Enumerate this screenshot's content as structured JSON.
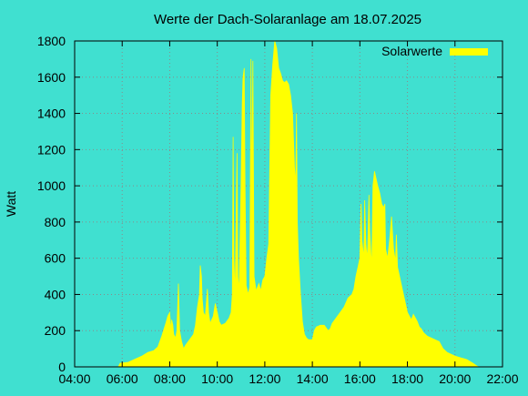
{
  "chart_data": {
    "type": "area",
    "title": "Werte der Dach-Solaranlage am 18.07.2025",
    "xlabel": "",
    "ylabel": "Watt",
    "xlim": [
      "04:00",
      "22:00"
    ],
    "ylim": [
      0,
      1800
    ],
    "x_ticks": [
      "04:00",
      "06:00",
      "08:00",
      "10:00",
      "12:00",
      "14:00",
      "16:00",
      "18:00",
      "20:00",
      "22:00"
    ],
    "y_ticks": [
      0,
      200,
      400,
      600,
      800,
      1000,
      1200,
      1400,
      1600,
      1800
    ],
    "grid": true,
    "legend_position": "top-right",
    "series": [
      {
        "name": "Solarwerte",
        "color": "#ffff00",
        "points": [
          [
            "05:50",
            0
          ],
          [
            "05:55",
            20
          ],
          [
            "06:15",
            25
          ],
          [
            "06:30",
            40
          ],
          [
            "06:50",
            60
          ],
          [
            "07:05",
            80
          ],
          [
            "07:20",
            90
          ],
          [
            "07:30",
            110
          ],
          [
            "07:40",
            170
          ],
          [
            "07:50",
            240
          ],
          [
            "07:55",
            280
          ],
          [
            "08:00",
            300
          ],
          [
            "08:03",
            200
          ],
          [
            "08:05",
            260
          ],
          [
            "08:08",
            230
          ],
          [
            "08:10",
            180
          ],
          [
            "08:15",
            160
          ],
          [
            "08:18",
            200
          ],
          [
            "08:22",
            460
          ],
          [
            "08:25",
            200
          ],
          [
            "08:30",
            140
          ],
          [
            "08:35",
            100
          ],
          [
            "08:40",
            120
          ],
          [
            "08:50",
            150
          ],
          [
            "09:00",
            180
          ],
          [
            "09:05",
            230
          ],
          [
            "09:10",
            330
          ],
          [
            "09:15",
            400
          ],
          [
            "09:17",
            560
          ],
          [
            "09:20",
            500
          ],
          [
            "09:22",
            380
          ],
          [
            "09:25",
            300
          ],
          [
            "09:30",
            280
          ],
          [
            "09:35",
            430
          ],
          [
            "09:38",
            300
          ],
          [
            "09:42",
            240
          ],
          [
            "09:50",
            280
          ],
          [
            "09:55",
            350
          ],
          [
            "10:00",
            300
          ],
          [
            "10:05",
            250
          ],
          [
            "10:10",
            230
          ],
          [
            "10:20",
            240
          ],
          [
            "10:30",
            270
          ],
          [
            "10:35",
            300
          ],
          [
            "10:38",
            400
          ],
          [
            "10:40",
            1270
          ],
          [
            "10:42",
            600
          ],
          [
            "10:45",
            400
          ],
          [
            "10:48",
            900
          ],
          [
            "10:50",
            1180
          ],
          [
            "10:52",
            500
          ],
          [
            "10:55",
            420
          ],
          [
            "11:00",
            1000
          ],
          [
            "11:03",
            1450
          ],
          [
            "11:05",
            1600
          ],
          [
            "11:08",
            1650
          ],
          [
            "11:10",
            1050
          ],
          [
            "11:13",
            450
          ],
          [
            "11:18",
            400
          ],
          [
            "11:22",
            440
          ],
          [
            "11:25",
            1700
          ],
          [
            "11:27",
            900
          ],
          [
            "11:30",
            1690
          ],
          [
            "11:33",
            500
          ],
          [
            "11:38",
            420
          ],
          [
            "11:45",
            460
          ],
          [
            "11:50",
            420
          ],
          [
            "11:55",
            480
          ],
          [
            "12:00",
            500
          ],
          [
            "12:05",
            600
          ],
          [
            "12:10",
            680
          ],
          [
            "12:15",
            1500
          ],
          [
            "12:20",
            1670
          ],
          [
            "12:25",
            1800
          ],
          [
            "12:30",
            1760
          ],
          [
            "12:35",
            1650
          ],
          [
            "12:40",
            1620
          ],
          [
            "12:45",
            1580
          ],
          [
            "12:50",
            1570
          ],
          [
            "12:55",
            1580
          ],
          [
            "13:00",
            1560
          ],
          [
            "13:05",
            1500
          ],
          [
            "13:10",
            1400
          ],
          [
            "13:15",
            1100
          ],
          [
            "13:18",
            1000
          ],
          [
            "13:20",
            1400
          ],
          [
            "13:22",
            800
          ],
          [
            "13:25",
            600
          ],
          [
            "13:30",
            400
          ],
          [
            "13:35",
            250
          ],
          [
            "13:40",
            180
          ],
          [
            "13:45",
            160
          ],
          [
            "13:50",
            150
          ],
          [
            "14:00",
            150
          ],
          [
            "14:05",
            200
          ],
          [
            "14:10",
            220
          ],
          [
            "14:20",
            230
          ],
          [
            "14:30",
            230
          ],
          [
            "14:40",
            200
          ],
          [
            "14:45",
            210
          ],
          [
            "14:50",
            240
          ],
          [
            "15:00",
            270
          ],
          [
            "15:10",
            300
          ],
          [
            "15:20",
            330
          ],
          [
            "15:30",
            380
          ],
          [
            "15:40",
            400
          ],
          [
            "15:45",
            430
          ],
          [
            "15:50",
            500
          ],
          [
            "15:55",
            550
          ],
          [
            "16:00",
            600
          ],
          [
            "16:03",
            900
          ],
          [
            "16:05",
            700
          ],
          [
            "16:10",
            600
          ],
          [
            "16:12",
            920
          ],
          [
            "16:15",
            680
          ],
          [
            "16:18",
            600
          ],
          [
            "16:20",
            660
          ],
          [
            "16:23",
            950
          ],
          [
            "16:25",
            750
          ],
          [
            "16:28",
            620
          ],
          [
            "16:30",
            560
          ],
          [
            "16:33",
            1000
          ],
          [
            "16:37",
            1080
          ],
          [
            "16:40",
            1050
          ],
          [
            "16:45",
            1000
          ],
          [
            "16:50",
            960
          ],
          [
            "16:55",
            900
          ],
          [
            "17:00",
            880
          ],
          [
            "17:03",
            900
          ],
          [
            "17:05",
            650
          ],
          [
            "17:10",
            600
          ],
          [
            "17:15",
            700
          ],
          [
            "17:20",
            830
          ],
          [
            "17:25",
            650
          ],
          [
            "17:30",
            580
          ],
          [
            "17:32",
            730
          ],
          [
            "17:35",
            550
          ],
          [
            "17:40",
            500
          ],
          [
            "17:45",
            450
          ],
          [
            "17:50",
            400
          ],
          [
            "17:55",
            350
          ],
          [
            "18:00",
            300
          ],
          [
            "18:05",
            280
          ],
          [
            "18:10",
            260
          ],
          [
            "18:15",
            290
          ],
          [
            "18:20",
            270
          ],
          [
            "18:25",
            250
          ],
          [
            "18:30",
            220
          ],
          [
            "18:35",
            210
          ],
          [
            "18:40",
            190
          ],
          [
            "18:45",
            180
          ],
          [
            "18:50",
            170
          ],
          [
            "19:00",
            160
          ],
          [
            "19:10",
            150
          ],
          [
            "19:20",
            140
          ],
          [
            "19:30",
            100
          ],
          [
            "19:40",
            80
          ],
          [
            "19:50",
            70
          ],
          [
            "20:00",
            60
          ],
          [
            "20:15",
            50
          ],
          [
            "20:30",
            40
          ],
          [
            "20:45",
            20
          ],
          [
            "20:55",
            5
          ],
          [
            "21:00",
            0
          ]
        ]
      }
    ]
  }
}
